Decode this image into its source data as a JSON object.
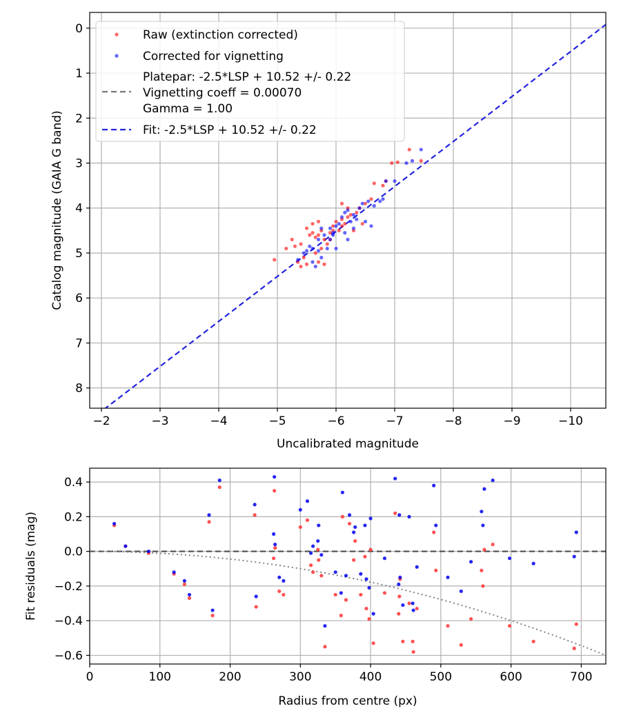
{
  "chart_data": [
    {
      "type": "scatter",
      "id": "calibration",
      "xlabel": "Uncalibrated magnitude",
      "ylabel": "Catalog magnitude (GAIA G band)",
      "xlim": [
        -1.8,
        -10.6
      ],
      "ylim": [
        8.45,
        -0.35
      ],
      "xticks": [
        -2,
        -3,
        -4,
        -5,
        -6,
        -7,
        -8,
        -9,
        -10
      ],
      "xtick_labels": [
        "−2",
        "−3",
        "−4",
        "−5",
        "−6",
        "−7",
        "−8",
        "−9",
        "−10"
      ],
      "yticks": [
        0,
        1,
        2,
        3,
        4,
        5,
        6,
        7,
        8
      ],
      "ytick_labels": [
        "0",
        "1",
        "2",
        "3",
        "4",
        "5",
        "6",
        "7",
        "8"
      ],
      "grid": true,
      "legend_position": "upper-left",
      "legend": {
        "raw": "Raw (extinction corrected)",
        "corrected": "Corrected for vignetting",
        "platepar_lines": [
          "Platepar: -2.5*LSP + 10.52 +/- 0.22",
          "Vignetting coeff = 0.00070",
          "Gamma = 1.00"
        ],
        "fit": "Fit: -2.5*LSP + 10.52 +/- 0.22"
      },
      "colors": {
        "raw": "#ff0000",
        "corrected": "#0000ff",
        "platepar_line": "#777777",
        "fit_line": "#2222dd",
        "grid": "#b0b0b0"
      },
      "fit_line": {
        "slope": 1.0,
        "intercept": 10.52
      },
      "series": [
        {
          "name": "Raw (extinction corrected)",
          "points": [
            [
              -4.95,
              5.15
            ],
            [
              -5.15,
              4.9
            ],
            [
              -5.3,
              4.85
            ],
            [
              -5.25,
              4.7
            ],
            [
              -5.4,
              4.8
            ],
            [
              -5.35,
              5.2
            ],
            [
              -5.4,
              5.3
            ],
            [
              -5.5,
              5.25
            ],
            [
              -5.45,
              5.1
            ],
            [
              -5.55,
              4.6
            ],
            [
              -5.5,
              4.45
            ],
            [
              -5.6,
              4.55
            ],
            [
              -5.65,
              4.65
            ],
            [
              -5.7,
              4.6
            ],
            [
              -5.6,
              4.35
            ],
            [
              -5.7,
              4.3
            ],
            [
              -5.75,
              4.5
            ],
            [
              -5.8,
              4.7
            ],
            [
              -5.65,
              5.0
            ],
            [
              -5.7,
              5.2
            ],
            [
              -5.8,
              5.25
            ],
            [
              -5.75,
              4.9
            ],
            [
              -5.85,
              4.8
            ],
            [
              -5.9,
              4.55
            ],
            [
              -5.95,
              4.5
            ],
            [
              -5.95,
              4.4
            ],
            [
              -6.0,
              4.3
            ],
            [
              -6.05,
              4.5
            ],
            [
              -6.1,
              4.4
            ],
            [
              -6.15,
              4.35
            ],
            [
              -6.1,
              4.25
            ],
            [
              -6.2,
              4.2
            ],
            [
              -6.25,
              4.15
            ],
            [
              -6.1,
              3.9
            ],
            [
              -6.35,
              4.1
            ],
            [
              -6.45,
              4.35
            ],
            [
              -6.4,
              4.0
            ],
            [
              -6.5,
              3.9
            ],
            [
              -6.6,
              3.8
            ],
            [
              -6.65,
              3.45
            ],
            [
              -6.8,
              3.5
            ],
            [
              -6.85,
              3.4
            ],
            [
              -6.95,
              3.0
            ],
            [
              -7.05,
              2.98
            ],
            [
              -7.25,
              2.7
            ],
            [
              -7.45,
              2.95
            ],
            [
              -6.3,
              4.5
            ],
            [
              -6.2,
              4.0
            ],
            [
              -5.9,
              4.7
            ]
          ]
        },
        {
          "name": "Corrected for vignetting",
          "points": [
            [
              -5.35,
              5.15
            ],
            [
              -5.45,
              5.0
            ],
            [
              -5.5,
              4.95
            ],
            [
              -5.55,
              4.85
            ],
            [
              -5.6,
              5.2
            ],
            [
              -5.65,
              5.3
            ],
            [
              -5.7,
              4.95
            ],
            [
              -5.75,
              5.1
            ],
            [
              -5.7,
              4.7
            ],
            [
              -5.8,
              4.6
            ],
            [
              -5.85,
              4.9
            ],
            [
              -5.9,
              4.7
            ],
            [
              -5.9,
              4.45
            ],
            [
              -5.95,
              4.55
            ],
            [
              -6.0,
              4.4
            ],
            [
              -6.05,
              4.35
            ],
            [
              -6.1,
              4.2
            ],
            [
              -6.15,
              4.1
            ],
            [
              -6.2,
              4.05
            ],
            [
              -6.25,
              4.3
            ],
            [
              -6.3,
              4.15
            ],
            [
              -6.35,
              4.25
            ],
            [
              -6.4,
              4.0
            ],
            [
              -6.45,
              3.9
            ],
            [
              -6.5,
              4.3
            ],
            [
              -6.55,
              3.85
            ],
            [
              -6.6,
              4.4
            ],
            [
              -6.65,
              3.95
            ],
            [
              -6.75,
              3.85
            ],
            [
              -6.8,
              3.8
            ],
            [
              -6.85,
              3.4
            ],
            [
              -7.0,
              3.4
            ],
            [
              -7.2,
              3.0
            ],
            [
              -7.3,
              2.95
            ],
            [
              -7.45,
              2.7
            ],
            [
              -6.3,
              4.45
            ],
            [
              -6.2,
              4.7
            ],
            [
              -6.0,
              4.9
            ],
            [
              -5.95,
              4.6
            ],
            [
              -5.6,
              4.9
            ],
            [
              -6.15,
              4.55
            ],
            [
              -5.75,
              4.45
            ]
          ]
        }
      ]
    },
    {
      "type": "scatter",
      "id": "residuals",
      "xlabel": "Radius from centre (px)",
      "ylabel": "Fit residuals (mag)",
      "xlim": [
        0,
        735
      ],
      "ylim": [
        -0.65,
        0.48
      ],
      "xticks": [
        0,
        100,
        200,
        300,
        400,
        500,
        600,
        700
      ],
      "xtick_labels": [
        "0",
        "100",
        "200",
        "300",
        "400",
        "500",
        "600",
        "700"
      ],
      "yticks": [
        0.4,
        0.2,
        0.0,
        -0.2,
        -0.4,
        -0.6
      ],
      "ytick_labels": [
        "0.4",
        "0.2",
        "0.0",
        "−0.2",
        "−0.4",
        "−0.6"
      ],
      "grid": true,
      "colors": {
        "raw": "#ff3333",
        "corrected": "#0000ee",
        "zero_line": "#555555",
        "vignetting_curve": "#808080"
      },
      "zero_line": 0.0,
      "vignetting_curve": {
        "type": "quadratic",
        "coeff": -1.11e-06
      },
      "series": [
        {
          "name": "Raw (extinction corrected)",
          "points": [
            [
              35,
              0.15
            ],
            [
              51,
              0.03
            ],
            [
              84,
              -0.01
            ],
            [
              120,
              -0.13
            ],
            [
              135,
              -0.19
            ],
            [
              142,
              -0.27
            ],
            [
              170,
              0.17
            ],
            [
              175,
              -0.37
            ],
            [
              185,
              0.37
            ],
            [
              235,
              0.21
            ],
            [
              237,
              -0.32
            ],
            [
              262,
              -0.04
            ],
            [
              263,
              0.35
            ],
            [
              264,
              0.02
            ],
            [
              270,
              -0.23
            ],
            [
              276,
              -0.25
            ],
            [
              300,
              0.14
            ],
            [
              310,
              0.18
            ],
            [
              315,
              -0.08
            ],
            [
              318,
              -0.12
            ],
            [
              325,
              0.01
            ],
            [
              326,
              -0.05
            ],
            [
              330,
              -0.14
            ],
            [
              335,
              -0.55
            ],
            [
              350,
              -0.25
            ],
            [
              358,
              -0.37
            ],
            [
              360,
              0.2
            ],
            [
              365,
              -0.28
            ],
            [
              370,
              0.16
            ],
            [
              376,
              -0.05
            ],
            [
              378,
              0.06
            ],
            [
              386,
              -0.25
            ],
            [
              392,
              -0.03
            ],
            [
              394,
              -0.33
            ],
            [
              398,
              -0.39
            ],
            [
              400,
              0.01
            ],
            [
              404,
              -0.53
            ],
            [
              420,
              -0.24
            ],
            [
              435,
              0.22
            ],
            [
              440,
              -0.36
            ],
            [
              441,
              -0.26
            ],
            [
              442,
              -0.16
            ],
            [
              446,
              -0.52
            ],
            [
              455,
              -0.3
            ],
            [
              460,
              -0.52
            ],
            [
              461,
              -0.58
            ],
            [
              466,
              -0.33
            ],
            [
              490,
              0.11
            ],
            [
              493,
              -0.11
            ],
            [
              510,
              -0.43
            ],
            [
              529,
              -0.54
            ],
            [
              543,
              -0.39
            ],
            [
              558,
              -0.11
            ],
            [
              560,
              -0.2
            ],
            [
              562,
              0.01
            ],
            [
              574,
              0.04
            ],
            [
              598,
              -0.43
            ],
            [
              632,
              -0.52
            ],
            [
              690,
              -0.56
            ],
            [
              693,
              -0.42
            ]
          ]
        },
        {
          "name": "Corrected for vignetting",
          "points": [
            [
              35,
              0.16
            ],
            [
              51,
              0.03
            ],
            [
              84,
              0.0
            ],
            [
              120,
              -0.12
            ],
            [
              135,
              -0.17
            ],
            [
              142,
              -0.25
            ],
            [
              170,
              0.21
            ],
            [
              175,
              -0.34
            ],
            [
              185,
              0.41
            ],
            [
              235,
              0.27
            ],
            [
              237,
              -0.26
            ],
            [
              262,
              0.1
            ],
            [
              263,
              0.43
            ],
            [
              264,
              0.04
            ],
            [
              270,
              -0.15
            ],
            [
              276,
              -0.17
            ],
            [
              300,
              0.24
            ],
            [
              310,
              0.29
            ],
            [
              315,
              -0.01
            ],
            [
              318,
              0.03
            ],
            [
              325,
              0.06
            ],
            [
              326,
              0.15
            ],
            [
              330,
              -0.02
            ],
            [
              335,
              -0.43
            ],
            [
              350,
              -0.12
            ],
            [
              358,
              -0.24
            ],
            [
              360,
              0.34
            ],
            [
              365,
              -0.14
            ],
            [
              370,
              0.21
            ],
            [
              376,
              0.11
            ],
            [
              378,
              0.14
            ],
            [
              386,
              -0.13
            ],
            [
              392,
              0.15
            ],
            [
              394,
              -0.16
            ],
            [
              398,
              -0.21
            ],
            [
              400,
              0.19
            ],
            [
              404,
              -0.36
            ],
            [
              420,
              -0.04
            ],
            [
              435,
              0.42
            ],
            [
              440,
              -0.19
            ],
            [
              441,
              0.21
            ],
            [
              442,
              -0.15
            ],
            [
              446,
              -0.31
            ],
            [
              455,
              0.2
            ],
            [
              460,
              -0.3
            ],
            [
              461,
              -0.34
            ],
            [
              466,
              -0.09
            ],
            [
              490,
              0.38
            ],
            [
              493,
              0.15
            ],
            [
              510,
              -0.15
            ],
            [
              529,
              -0.23
            ],
            [
              543,
              -0.06
            ],
            [
              558,
              0.23
            ],
            [
              560,
              0.15
            ],
            [
              562,
              0.36
            ],
            [
              574,
              0.41
            ],
            [
              598,
              -0.04
            ],
            [
              632,
              -0.07
            ],
            [
              690,
              -0.03
            ],
            [
              693,
              0.11
            ]
          ]
        }
      ]
    }
  ]
}
